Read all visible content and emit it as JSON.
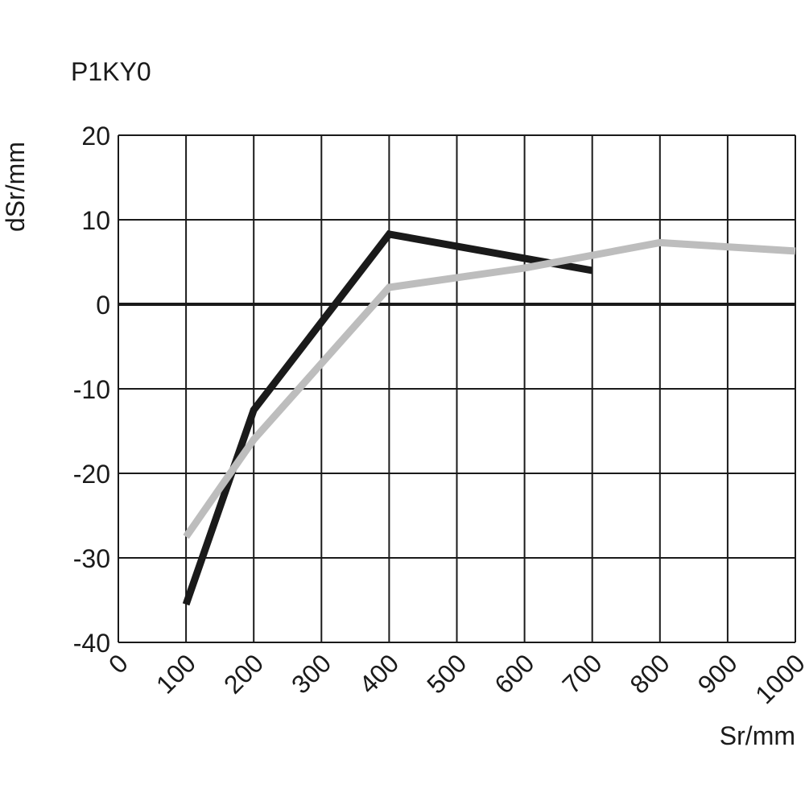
{
  "chart_data": {
    "type": "line",
    "title": "P1KY0",
    "xlabel": "Sr/mm",
    "ylabel": "dSr/mm",
    "xlim": [
      0,
      1000
    ],
    "ylim": [
      -40,
      20
    ],
    "x_ticks": [
      0,
      100,
      200,
      300,
      400,
      500,
      600,
      700,
      800,
      900,
      1000
    ],
    "x_tick_labels": [
      "0",
      "100",
      "200",
      "300",
      "400",
      "500",
      "600",
      "700",
      "800",
      "900",
      "1000"
    ],
    "y_ticks": [
      20,
      10,
      0,
      -10,
      -20,
      -30,
      -40
    ],
    "y_tick_labels": [
      "20",
      "10",
      "0",
      "-10",
      "-20",
      "-30",
      "-40"
    ],
    "grid": true,
    "zero_line": true,
    "series": [
      {
        "color": "#1a1a1a",
        "points": [
          {
            "x": 100,
            "y": -35.5
          },
          {
            "x": 200,
            "y": -12.5
          },
          {
            "x": 400,
            "y": 8.3
          },
          {
            "x": 700,
            "y": 4.0
          }
        ]
      },
      {
        "color": "#bdbdbd",
        "points": [
          {
            "x": 100,
            "y": -27.5
          },
          {
            "x": 200,
            "y": -16.0
          },
          {
            "x": 400,
            "y": 2.0
          },
          {
            "x": 600,
            "y": 4.3
          },
          {
            "x": 800,
            "y": 7.3
          },
          {
            "x": 1000,
            "y": 6.3
          }
        ]
      }
    ]
  }
}
